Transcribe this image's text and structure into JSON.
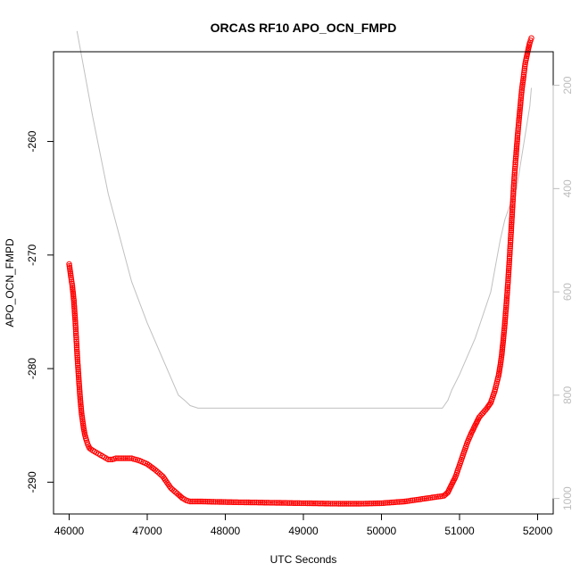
{
  "chart_data": {
    "type": "scatter",
    "title": "ORCAS RF10 APO_OCN_FMPD",
    "xlabel": "UTC Seconds",
    "ylabel": "APO_OCN_FMPD",
    "xlim": [
      45800,
      52200
    ],
    "ylim": [
      -292.8,
      -252.1
    ],
    "x_ticks": [
      46000,
      47000,
      48000,
      49000,
      50000,
      51000,
      52000
    ],
    "x_tick_labels": [
      "46000",
      "47000",
      "48000",
      "49000",
      "50000",
      "51000",
      "52000"
    ],
    "y_ticks": [
      -290,
      -280,
      -270,
      -260
    ],
    "y_tick_labels": [
      "-290",
      "-280",
      "-270",
      "-260"
    ],
    "y2_ticks": [
      200,
      400,
      600,
      800,
      1000
    ],
    "y2_tick_labels": [
      "200",
      "400",
      "600",
      "800",
      "1000"
    ],
    "y2lim": [
      1030,
      135
    ],
    "series": [
      {
        "kind": "points",
        "color": "#ff0000",
        "marker": "open-circle",
        "x": [
          46000,
          46020,
          46040,
          46060,
          46080,
          46100,
          46120,
          46140,
          46160,
          46180,
          46200,
          46220,
          46240,
          46260,
          46280,
          46300,
          46350,
          46400,
          46450,
          46500,
          46550,
          46600,
          46700,
          46800,
          46900,
          47000,
          47100,
          47200,
          47300,
          47400,
          47450,
          47500,
          47550,
          47600,
          47650,
          47700,
          48000,
          48500,
          49000,
          49500,
          49700,
          50000,
          50300,
          50500,
          50700,
          50800,
          50850,
          50900,
          50950,
          51000,
          51050,
          51100,
          51150,
          51200,
          51250,
          51300,
          51350,
          51400,
          51450,
          51500,
          51520,
          51540,
          51560,
          51580,
          51600,
          51620,
          51640,
          51660,
          51680,
          51700,
          51720,
          51740,
          51760,
          51780,
          51800,
          51820,
          51840,
          51860,
          51880,
          51900,
          51920
        ],
        "y": [
          -270.8,
          -271.8,
          -272.7,
          -274.0,
          -276.0,
          -278.5,
          -280.6,
          -282.5,
          -284.0,
          -285.0,
          -285.8,
          -286.3,
          -286.7,
          -287.0,
          -287.1,
          -287.2,
          -287.4,
          -287.6,
          -287.8,
          -288.0,
          -288.0,
          -287.9,
          -287.9,
          -287.9,
          -288.1,
          -288.4,
          -288.9,
          -289.5,
          -290.5,
          -291.1,
          -291.4,
          -291.6,
          -291.7,
          -291.7,
          -291.7,
          -291.7,
          -291.75,
          -291.8,
          -291.85,
          -291.9,
          -291.9,
          -291.85,
          -291.7,
          -291.5,
          -291.3,
          -291.2,
          -290.9,
          -290.2,
          -289.5,
          -288.5,
          -287.5,
          -286.5,
          -285.7,
          -285.0,
          -284.3,
          -283.9,
          -283.5,
          -283.0,
          -282.0,
          -280.6,
          -279.8,
          -278.8,
          -277.5,
          -276.0,
          -274.3,
          -272.4,
          -270.3,
          -268.0,
          -265.6,
          -263.3,
          -261.5,
          -259.8,
          -258.2,
          -256.7,
          -255.3,
          -254.3,
          -253.2,
          -252.5,
          -251.9,
          -251.3,
          -250.9
        ]
      },
      {
        "kind": "line",
        "axis": "right",
        "color": "#c0c0c0",
        "x": [
          46100,
          46300,
          46500,
          46800,
          47000,
          47200,
          47400,
          47480,
          47550,
          47650,
          48000,
          49000,
          50000,
          50780,
          50850,
          50900,
          51000,
          51200,
          51400,
          51520,
          51580,
          51650,
          51730,
          51900,
          51920
        ],
        "y": [
          95,
          260,
          410,
          580,
          660,
          730,
          800,
          810,
          820,
          825,
          825,
          825,
          825,
          825,
          810,
          790,
          760,
          690,
          600,
          500,
          460,
          430,
          400,
          240,
          205
        ]
      }
    ]
  }
}
